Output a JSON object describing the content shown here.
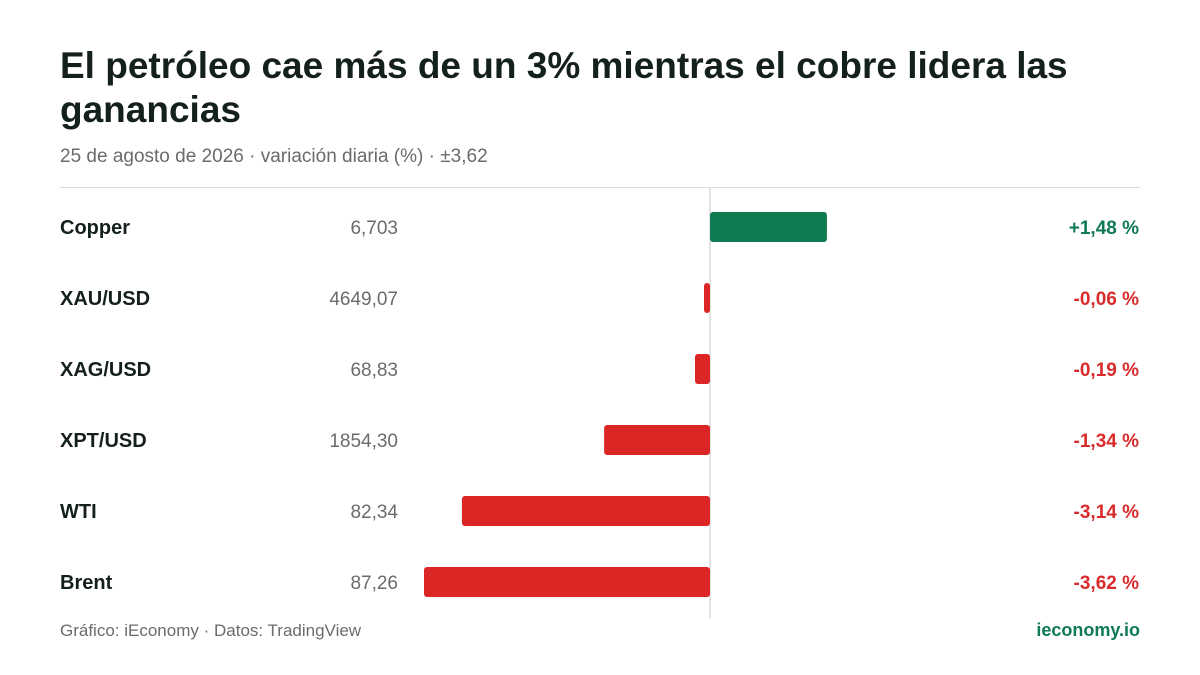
{
  "header": {
    "title": "El petróleo cae más de un 3% mientras el cobre lidera las ganancias",
    "subtitle_date": "25 de agosto de 2026",
    "subtitle_metric": "variación diaria (%)",
    "subtitle_scale": "±3,62"
  },
  "colors": {
    "positive": "#0e7c50",
    "negative": "#dc2626",
    "positive_text": "#0f7a55",
    "negative_text": "#d92b2b",
    "axis": "#d9d9d9",
    "rule": "#dddddd"
  },
  "chart_data": {
    "type": "bar",
    "orientation": "horizontal",
    "xlim": [
      -3.62,
      3.62
    ],
    "categories": [
      "Copper",
      "XAU/USD",
      "XAG/USD",
      "XPT/USD",
      "WTI",
      "Brent"
    ],
    "prices": [
      "6,703",
      "4649,07",
      "68,83",
      "1854,30",
      "82,34",
      "87,26"
    ],
    "values": [
      1.48,
      -0.06,
      -0.19,
      -1.34,
      -3.14,
      -3.62
    ],
    "value_labels": [
      "+1,48 %",
      "-0,06 %",
      "-0,19 %",
      "-1,34 %",
      "-3,14 %",
      "-3,62 %"
    ]
  },
  "footer": {
    "credit": "Gráfico: iEconomy · Datos: TradingView",
    "brand": "ieconomy.io"
  }
}
